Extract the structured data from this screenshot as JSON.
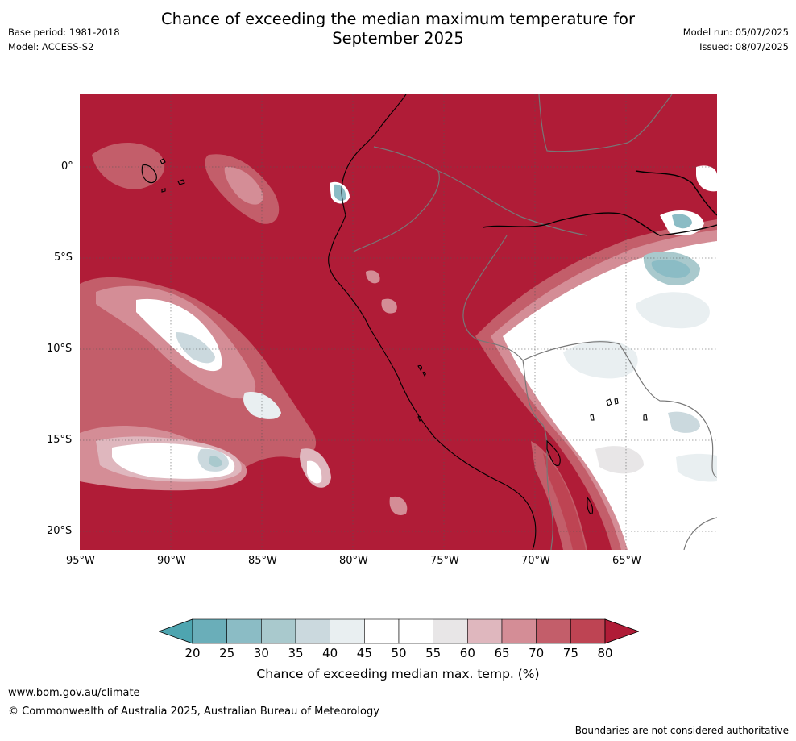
{
  "title": "Chance of exceeding the median maximum temperature for September 2025",
  "title_lines": [
    "Chance of exceeding the median maximum temperature for",
    "September 2025"
  ],
  "meta_left": {
    "base_period": "Base period: 1981-2018",
    "model": "Model: ACCESS-S2"
  },
  "meta_right": {
    "model_run": "Model run: 05/07/2025",
    "issued": "Issued: 08/07/2025"
  },
  "map": {
    "lon_labels": [
      "95°W",
      "90°W",
      "85°W",
      "80°W",
      "75°W",
      "70°W",
      "65°W"
    ],
    "lat_labels": [
      "0°",
      "5°S",
      "10°S",
      "15°S",
      "20°S"
    ],
    "base_color": "#b01c37"
  },
  "colorbar": {
    "label": "Chance of exceeding median max. temp. (%)",
    "ticks": [
      "20",
      "25",
      "30",
      "35",
      "40",
      "45",
      "50",
      "55",
      "60",
      "65",
      "70",
      "75",
      "80"
    ],
    "colors": [
      "#6aaeb9",
      "#8bbcc5",
      "#a9c9cd",
      "#cbd9de",
      "#e9eff1",
      "#ffffff",
      "#ffffff",
      "#e8e6e7",
      "#dfb7be",
      "#d48d96",
      "#c35e6a",
      "#be4453"
    ],
    "low_extend_color": "#4ea5b0",
    "high_extend_color": "#b01c37"
  },
  "footer": {
    "url": "www.bom.gov.au/climate",
    "copyright": "© Commonwealth of Australia 2025, Australian Bureau of Meteorology",
    "disclaimer": "Boundaries are not considered authoritative"
  }
}
